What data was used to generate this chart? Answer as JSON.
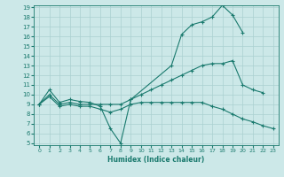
{
  "xlabel": "Humidex (Indice chaleur)",
  "bg_color": "#cce8e8",
  "grid_color": "#aad0d0",
  "line_color": "#1a7a6e",
  "ylim": [
    5,
    19
  ],
  "xlim": [
    -0.5,
    23.5
  ],
  "yticks": [
    5,
    6,
    7,
    8,
    9,
    10,
    11,
    12,
    13,
    14,
    15,
    16,
    17,
    18,
    19
  ],
  "xticks": [
    0,
    1,
    2,
    3,
    4,
    5,
    6,
    7,
    8,
    9,
    10,
    11,
    12,
    13,
    14,
    15,
    16,
    17,
    18,
    19,
    20,
    21,
    22,
    23
  ],
  "x_max": [
    0,
    1,
    2,
    3,
    4,
    5,
    6,
    7,
    8,
    9,
    13,
    14,
    15,
    16,
    17,
    18,
    19,
    20
  ],
  "y_max": [
    9.0,
    10.5,
    9.2,
    9.5,
    9.3,
    9.2,
    8.8,
    6.5,
    5.0,
    9.5,
    13.0,
    16.2,
    17.2,
    17.5,
    18.0,
    19.2,
    18.2,
    16.4
  ],
  "x_mean": [
    0,
    1,
    2,
    3,
    4,
    5,
    6,
    7,
    8,
    9,
    10,
    11,
    12,
    13,
    14,
    15,
    16,
    17,
    18,
    19,
    20,
    21,
    22
  ],
  "y_mean": [
    9.0,
    10.0,
    9.0,
    9.2,
    9.0,
    9.0,
    9.0,
    9.0,
    9.0,
    9.5,
    10.0,
    10.5,
    11.0,
    11.5,
    12.0,
    12.5,
    13.0,
    13.2,
    13.2,
    13.5,
    11.0,
    10.5,
    10.2
  ],
  "x_min": [
    0,
    1,
    2,
    3,
    4,
    5,
    6,
    7,
    8,
    9,
    10,
    11,
    12,
    13,
    14,
    15,
    16,
    17,
    18,
    19,
    20,
    21,
    22,
    23
  ],
  "y_min": [
    9.0,
    9.8,
    8.8,
    9.0,
    8.8,
    8.8,
    8.5,
    8.2,
    8.5,
    9.0,
    9.2,
    9.2,
    9.2,
    9.2,
    9.2,
    9.2,
    9.2,
    8.8,
    8.5,
    8.0,
    7.5,
    7.2,
    6.8,
    6.5
  ]
}
